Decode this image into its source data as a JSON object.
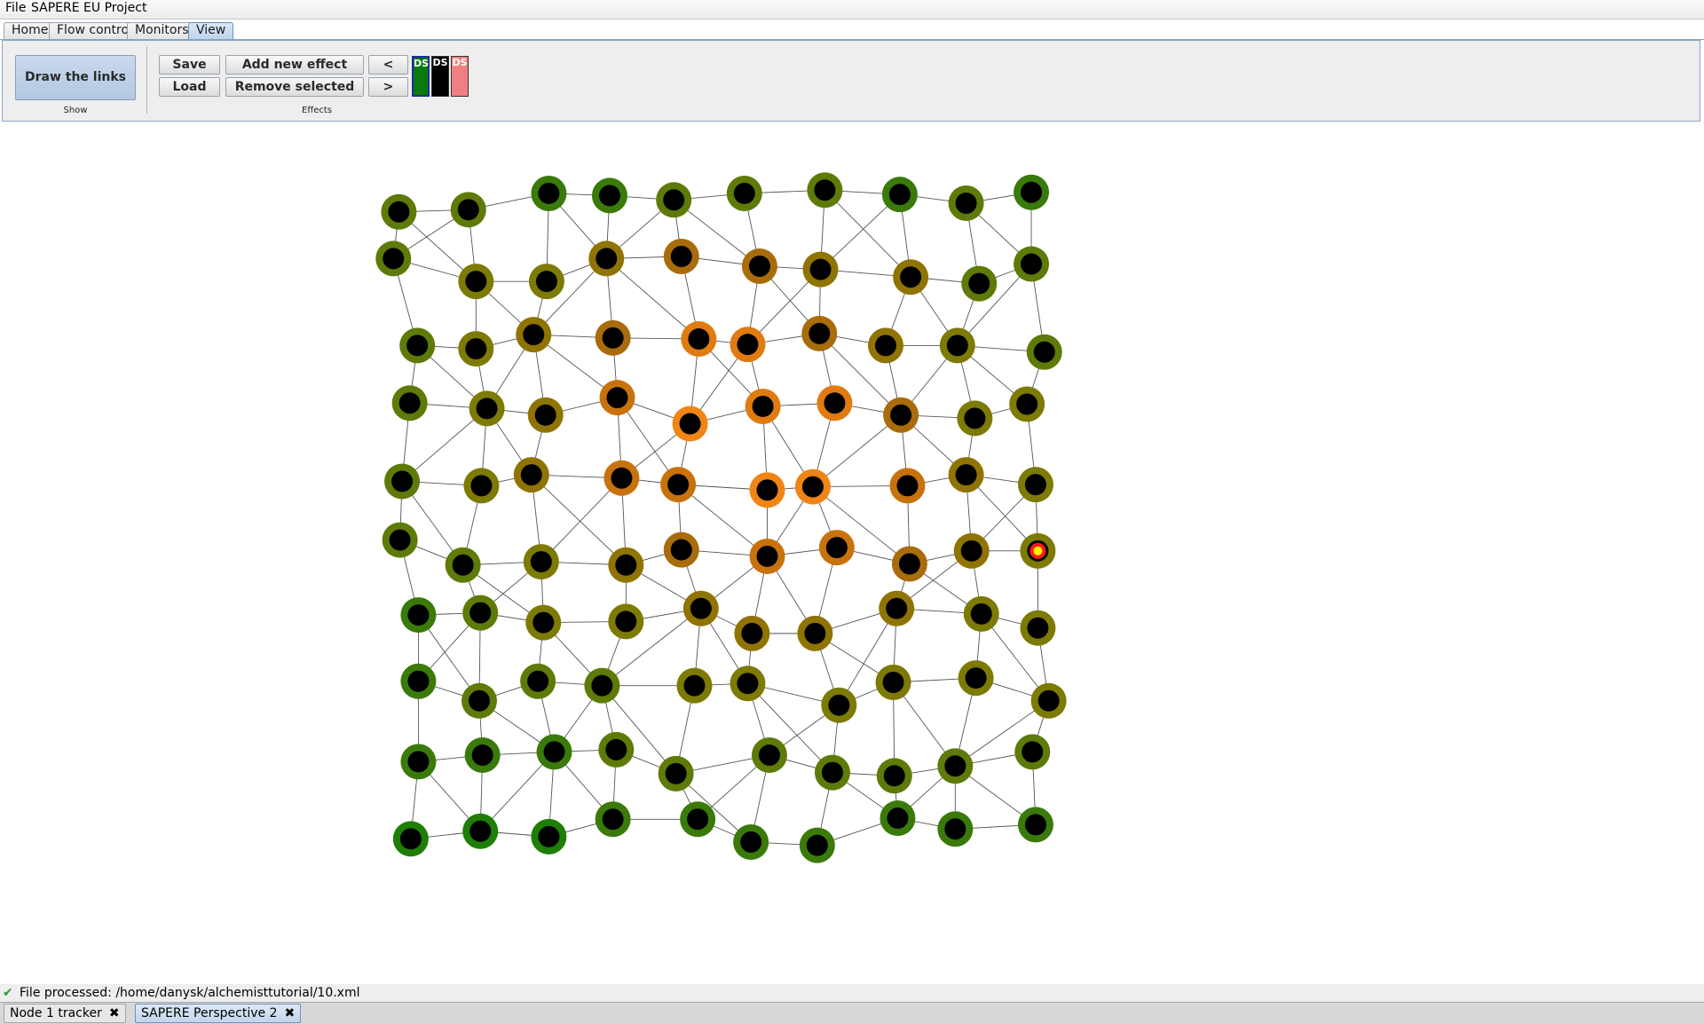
{
  "menubar": {
    "items": [
      "File",
      "SAPERE EU Project"
    ]
  },
  "tabs": [
    "Home",
    "Flow control",
    "Monitors",
    "View"
  ],
  "active_tab": "View",
  "ribbon": {
    "show_group": {
      "button": "Draw the links",
      "label": "Show"
    },
    "effects_group": {
      "save": "Save",
      "load": "Load",
      "add_effect": "Add new effect",
      "remove_selected": "Remove selected",
      "prev": "<",
      "next": ">",
      "label": "Effects"
    },
    "effect_swatches": [
      {
        "label": "DS",
        "color": "#0a7a0a",
        "selected": true
      },
      {
        "label": "DS",
        "color": "#000000",
        "selected": false
      },
      {
        "label": "DS",
        "color": "#f08080",
        "selected": false
      }
    ]
  },
  "graph": {
    "node_inner_color": "#000000",
    "edge_color": "#555555",
    "show_links": true,
    "palette": [
      "#1f7e05",
      "#3a7a0a",
      "#5e7a08",
      "#7d7a05",
      "#8f7404",
      "#a86c0c",
      "#c8720e",
      "#e07b10",
      "#f08515"
    ],
    "grid_rows": [
      {
        "x": [
          367,
          431,
          505,
          561,
          620,
          685,
          759,
          828,
          889,
          949
        ],
        "y": [
          195,
          193,
          178,
          180,
          184,
          178,
          175,
          179,
          187,
          177
        ],
        "level": [
          2,
          2,
          1,
          1,
          2,
          2,
          2,
          1,
          2,
          1
        ]
      },
      {
        "x": [
          362,
          438,
          503,
          558,
          627,
          699,
          755,
          838,
          901,
          949
        ],
        "y": [
          238,
          259,
          259,
          238,
          236,
          245,
          248,
          255,
          261,
          243
        ],
        "level": [
          2,
          3,
          3,
          4,
          5,
          5,
          4,
          4,
          2,
          2
        ]
      },
      {
        "x": [
          384,
          438,
          491,
          564,
          643,
          688,
          754,
          815,
          881,
          961
        ],
        "y": [
          318,
          321,
          308,
          311,
          312,
          317,
          307,
          318,
          318,
          324
        ],
        "level": [
          2,
          3,
          4,
          5,
          7,
          7,
          5,
          4,
          3,
          2
        ]
      },
      {
        "x": [
          377,
          448,
          502,
          568,
          635,
          702,
          768,
          829,
          897,
          945
        ],
        "y": [
          371,
          376,
          382,
          366,
          390,
          374,
          371,
          382,
          385,
          372
        ],
        "level": [
          2,
          3,
          4,
          6,
          8,
          7,
          7,
          5,
          3,
          3
        ]
      },
      {
        "x": [
          370,
          443,
          489,
          572,
          624,
          706,
          748,
          835,
          889,
          953
        ],
        "y": [
          443,
          447,
          437,
          440,
          446,
          451,
          448,
          447,
          437,
          446
        ],
        "level": [
          2,
          3,
          4,
          6,
          6,
          8,
          8,
          6,
          4,
          3
        ]
      },
      {
        "x": [
          368,
          426,
          498,
          576,
          627,
          706,
          770,
          837,
          894,
          955
        ],
        "y": [
          497,
          520,
          517,
          520,
          506,
          512,
          504,
          519,
          507,
          507
        ],
        "level": [
          2,
          2,
          3,
          4,
          5,
          6,
          6,
          5,
          4,
          3
        ]
      },
      {
        "x": [
          385,
          442,
          500,
          576,
          645,
          692,
          750,
          825,
          903,
          955
        ],
        "y": [
          566,
          564,
          573,
          572,
          560,
          583,
          583,
          560,
          565,
          578
        ],
        "level": [
          1,
          2,
          3,
          3,
          4,
          4,
          4,
          4,
          3,
          3
        ]
      },
      {
        "x": [
          385,
          441,
          495,
          554,
          639,
          688,
          772,
          822,
          898,
          965
        ],
        "y": [
          627,
          645,
          627,
          631,
          631,
          629,
          649,
          628,
          624,
          645
        ],
        "level": [
          1,
          2,
          2,
          2,
          3,
          3,
          3,
          3,
          3,
          3
        ]
      },
      {
        "x": [
          385,
          444,
          510,
          567,
          622,
          708,
          766,
          823,
          879,
          950
        ],
        "y": [
          701,
          695,
          692,
          690,
          712,
          695,
          711,
          714,
          705,
          692
        ],
        "level": [
          1,
          1,
          1,
          2,
          2,
          2,
          2,
          2,
          2,
          2
        ]
      },
      {
        "x": [
          378,
          442,
          505,
          564,
          642,
          691,
          752,
          826,
          879,
          953
        ],
        "y": [
          772,
          765,
          770,
          754,
          754,
          775,
          778,
          753,
          763,
          759
        ],
        "level": [
          0,
          0,
          0,
          1,
          1,
          1,
          1,
          1,
          1,
          1
        ]
      }
    ],
    "highlighted_node": {
      "row": 5,
      "col": 9,
      "ring": "#ff1a1a",
      "center": "#ffee00"
    }
  },
  "status": {
    "text": "File processed: /home/danysk/alchemisttutorial/10.xml",
    "icon": "check-icon"
  },
  "bottom_tabs": [
    {
      "label": "Node 1 tracker",
      "active": false
    },
    {
      "label": "SAPERE Perspective 2",
      "active": true
    }
  ]
}
